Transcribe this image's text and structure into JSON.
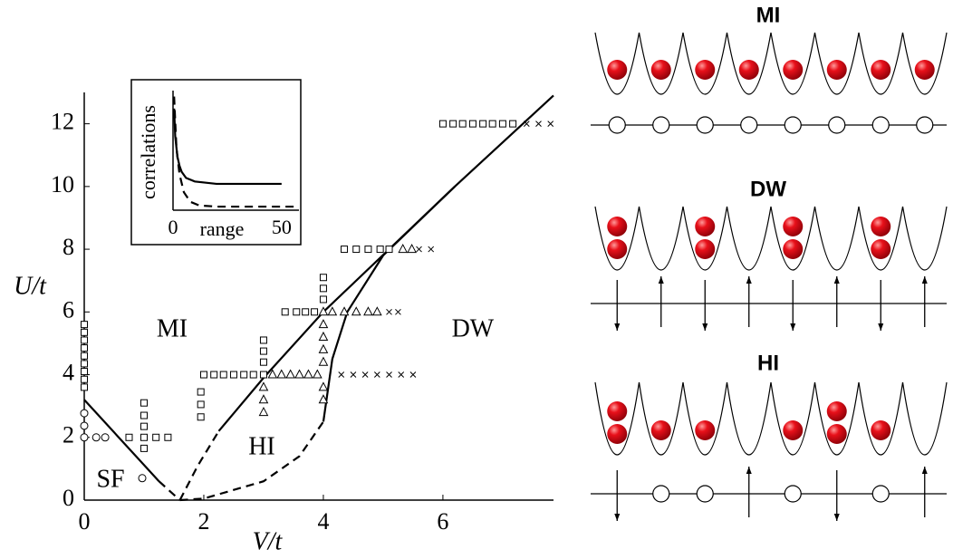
{
  "chart_data": [
    {
      "type": "scatter",
      "xlabel": "V/t",
      "ylabel": "U/t",
      "xlim": [
        0,
        7.85
      ],
      "xticks": [
        0,
        2,
        4,
        6
      ],
      "ylim": [
        0,
        13
      ],
      "yticks": [
        0,
        2,
        4,
        6,
        8,
        10,
        12
      ],
      "annotations": [
        "MI",
        "HI",
        "DW",
        "SF"
      ],
      "series": [
        {
          "line": "solid",
          "color": "#000000",
          "x": [
            0,
            1.25
          ],
          "values": [
            3.2,
            0.6
          ]
        },
        {
          "line": "dashed",
          "color": "#000000",
          "x": [
            1.25,
            1.6
          ],
          "values": [
            0.6,
            0
          ]
        },
        {
          "line": "dashed",
          "color": "#000000",
          "x": [
            1.6,
            1.9,
            2.25
          ],
          "values": [
            0,
            1.1,
            2.2
          ]
        },
        {
          "line": "solid",
          "color": "#000000",
          "x": [
            2.25,
            3,
            4,
            6.2,
            7.85
          ],
          "values": [
            2.2,
            3.9,
            6,
            10,
            12.9
          ]
        },
        {
          "line": "dashed",
          "color": "#000000",
          "x": [
            1.6,
            2,
            3,
            3.6,
            4
          ],
          "values": [
            0,
            0.05,
            0.6,
            1.4,
            2.5
          ]
        },
        {
          "line": "solid",
          "color": "#000000",
          "x": [
            4,
            4.15,
            4.4,
            5,
            6.2
          ],
          "values": [
            2.5,
            4.5,
            6,
            7.8,
            10
          ]
        },
        {
          "marker": "square",
          "color": "#000000",
          "x": [
            0,
            0,
            0,
            0,
            0,
            0,
            0,
            0,
            0,
            0.75,
            1,
            1.2,
            1.4,
            1,
            1,
            1,
            1,
            1.95,
            1.95,
            1.95,
            2,
            2.17,
            2.33,
            2.5,
            2.67,
            2.83,
            3,
            3,
            3,
            3,
            4,
            4,
            4,
            3.36,
            3.55,
            3.7,
            3.85,
            4.35,
            4.55,
            4.75,
            4.95,
            5.1,
            6,
            6.17,
            6.33,
            6.5,
            6.67,
            6.83,
            7,
            7.17
          ],
          "values": [
            3.6,
            3.85,
            4.1,
            4.35,
            4.6,
            4.85,
            5.1,
            5.35,
            5.6,
            2,
            2,
            2,
            2,
            1.65,
            2.35,
            2.7,
            3.1,
            2.65,
            3.05,
            3.45,
            4,
            4,
            4,
            4,
            4,
            4,
            4,
            4.4,
            4.75,
            5.1,
            6.4,
            6.75,
            7.1,
            6,
            6,
            6,
            6,
            8,
            8,
            8,
            8,
            8,
            12,
            12,
            12,
            12,
            12,
            12,
            12,
            12
          ]
        },
        {
          "marker": "triangle",
          "color": "#000000",
          "x": [
            3.15,
            3.3,
            3.45,
            3.6,
            3.75,
            3.9,
            3,
            3,
            3,
            4,
            4,
            4,
            4,
            4,
            4,
            4,
            4.15,
            4.35,
            4.55,
            4.75,
            4.9,
            5.33,
            5.48
          ],
          "values": [
            4,
            4,
            4,
            4,
            4,
            4,
            3.6,
            3.2,
            2.8,
            6,
            5.6,
            5.2,
            4.8,
            4.4,
            3.6,
            3.2,
            6,
            6,
            6,
            6,
            6,
            8,
            8
          ]
        },
        {
          "marker": "cross",
          "color": "#000000",
          "x": [
            4.3,
            4.5,
            4.7,
            4.9,
            5.1,
            5.3,
            5.5,
            5.1,
            5.25,
            5.6,
            5.8,
            7.4,
            7.6,
            7.8
          ],
          "values": [
            4,
            4,
            4,
            4,
            4,
            4,
            4,
            6,
            6,
            8,
            8,
            12,
            12,
            12
          ]
        },
        {
          "marker": "circle",
          "color": "#000000",
          "x": [
            0,
            0,
            0,
            0.2,
            0.35,
            0.97
          ],
          "values": [
            2.77,
            2.37,
            2,
            2,
            2,
            0.7
          ]
        }
      ]
    },
    {
      "type": "line",
      "xlabel": "range",
      "ylabel": "correlations",
      "xlim": [
        0,
        58
      ],
      "xticks": [
        0,
        50
      ],
      "ylim": [
        0,
        1
      ],
      "series": [
        {
          "line": "solid",
          "color": "#000000",
          "x": [
            0.5,
            1,
            2,
            3,
            4,
            6,
            10,
            20,
            35,
            50
          ],
          "values": [
            0.85,
            0.62,
            0.45,
            0.37,
            0.32,
            0.27,
            0.24,
            0.22,
            0.22,
            0.22
          ]
        },
        {
          "line": "dashed",
          "color": "#000000",
          "x": [
            0.5,
            1,
            1.5,
            2,
            3,
            5,
            8,
            12,
            20,
            58
          ],
          "values": [
            0.95,
            0.75,
            0.55,
            0.45,
            0.3,
            0.15,
            0.07,
            0.04,
            0.03,
            0.03
          ]
        }
      ]
    }
  ],
  "panels": [
    {
      "title": "MI"
    },
    {
      "title": "DW"
    },
    {
      "title": "HI"
    }
  ]
}
